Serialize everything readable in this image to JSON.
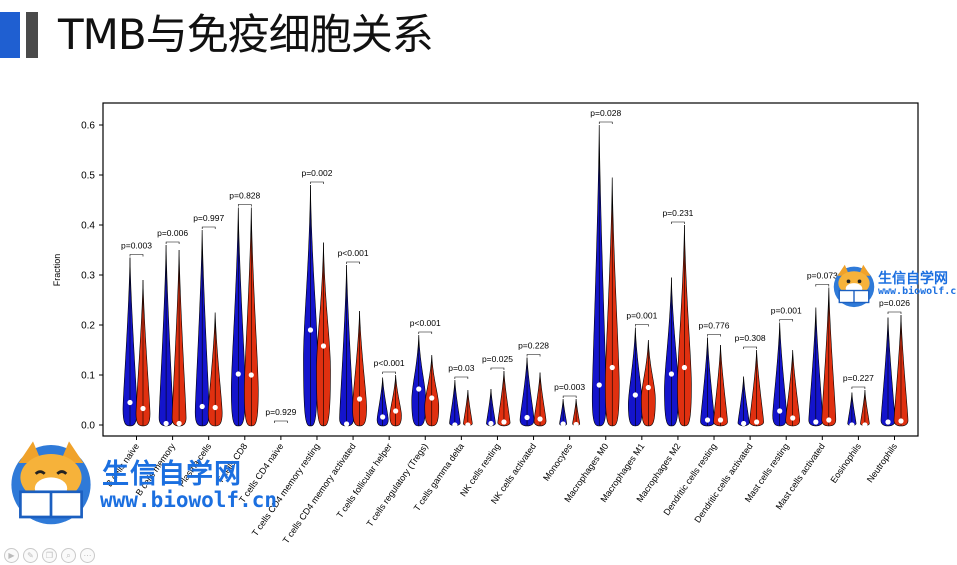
{
  "slide": {
    "title": "TMB与免疫细胞关系"
  },
  "brand": {
    "name_cn": "生信自学网",
    "url": "www.biowolf.cn"
  },
  "toolbar": {
    "icons": [
      "play-icon",
      "pen-icon",
      "copy-icon",
      "zoom-icon",
      "more-icon"
    ]
  },
  "chart_data": {
    "type": "violin",
    "ylabel": "Fraction",
    "ylim": [
      -0.02,
      0.65
    ],
    "yticks": [
      "0.0",
      "0.1",
      "0.2",
      "0.3",
      "0.4",
      "0.5",
      "0.6"
    ],
    "grid": false,
    "colors": {
      "low": "#1414cc",
      "high": "#e03010"
    },
    "categories": [
      {
        "label": "B cells naive",
        "p": "p=0.003",
        "low": {
          "max": 0.335,
          "median": 0.045
        },
        "high": {
          "max": 0.29,
          "median": 0.033
        }
      },
      {
        "label": "B cells memory",
        "p": "p=0.006",
        "low": {
          "max": 0.36,
          "median": 0.003
        },
        "high": {
          "max": 0.35,
          "median": 0.003
        }
      },
      {
        "label": "Plasma cells",
        "p": "p=0.997",
        "low": {
          "max": 0.39,
          "median": 0.037
        },
        "high": {
          "max": 0.225,
          "median": 0.035
        }
      },
      {
        "label": "T cells CD8",
        "p": "p=0.828",
        "low": {
          "max": 0.435,
          "median": 0.102
        },
        "high": {
          "max": 0.435,
          "median": 0.1
        }
      },
      {
        "label": "T cells CD4 naive",
        "p": "p=0.929",
        "low": {
          "max": 0.002,
          "median": 0.0
        },
        "high": {
          "max": 0.002,
          "median": 0.0
        }
      },
      {
        "label": "T cells CD4 memory resting",
        "p": "p=0.002",
        "low": {
          "max": 0.48,
          "median": 0.19
        },
        "high": {
          "max": 0.365,
          "median": 0.158
        }
      },
      {
        "label": "T cells CD4 memory activated",
        "p": "p<0.001",
        "low": {
          "max": 0.32,
          "median": 0.002
        },
        "high": {
          "max": 0.228,
          "median": 0.052
        }
      },
      {
        "label": "T cells follicular helper",
        "p": "p<0.001",
        "low": {
          "max": 0.095,
          "median": 0.016
        },
        "high": {
          "max": 0.1,
          "median": 0.028
        }
      },
      {
        "label": "T cells regulatory (Tregs)",
        "p": "p<0.001",
        "low": {
          "max": 0.18,
          "median": 0.072
        },
        "high": {
          "max": 0.14,
          "median": 0.054
        }
      },
      {
        "label": "T cells gamma delta",
        "p": "p=0.03",
        "low": {
          "max": 0.09,
          "median": 0.0
        },
        "high": {
          "max": 0.07,
          "median": 0.0
        }
      },
      {
        "label": "NK cells resting",
        "p": "p=0.025",
        "low": {
          "max": 0.072,
          "median": 0.003
        },
        "high": {
          "max": 0.108,
          "median": 0.006
        }
      },
      {
        "label": "NK cells activated",
        "p": "p=0.228",
        "low": {
          "max": 0.135,
          "median": 0.015
        },
        "high": {
          "max": 0.105,
          "median": 0.012
        }
      },
      {
        "label": "Monocytes",
        "p": "p=0.003",
        "low": {
          "max": 0.052,
          "median": 0.002
        },
        "high": {
          "max": 0.052,
          "median": 0.001
        }
      },
      {
        "label": "Macrophages M0",
        "p": "p=0.028",
        "low": {
          "max": 0.6,
          "median": 0.08
        },
        "high": {
          "max": 0.495,
          "median": 0.115
        }
      },
      {
        "label": "Macrophages M1",
        "p": "p=0.001",
        "low": {
          "max": 0.195,
          "median": 0.06
        },
        "high": {
          "max": 0.17,
          "median": 0.075
        }
      },
      {
        "label": "Macrophages M2",
        "p": "p=0.231",
        "low": {
          "max": 0.295,
          "median": 0.102
        },
        "high": {
          "max": 0.4,
          "median": 0.115
        }
      },
      {
        "label": "Dendritic cells resting",
        "p": "p=0.776",
        "low": {
          "max": 0.175,
          "median": 0.01
        },
        "high": {
          "max": 0.16,
          "median": 0.01
        }
      },
      {
        "label": "Dendritic cells activated",
        "p": "p=0.308",
        "low": {
          "max": 0.097,
          "median": 0.003
        },
        "high": {
          "max": 0.15,
          "median": 0.006
        }
      },
      {
        "label": "Mast cells resting",
        "p": "p=0.001",
        "low": {
          "max": 0.205,
          "median": 0.028
        },
        "high": {
          "max": 0.15,
          "median": 0.014
        }
      },
      {
        "label": "Mast cells activated",
        "p": "p=0.073",
        "low": {
          "max": 0.235,
          "median": 0.006
        },
        "high": {
          "max": 0.275,
          "median": 0.01
        }
      },
      {
        "label": "Eosinophils",
        "p": "p=0.227",
        "low": {
          "max": 0.065,
          "median": 0.0
        },
        "high": {
          "max": 0.07,
          "median": 0.0
        }
      },
      {
        "label": "Neutrophils",
        "p": "p=0.026",
        "low": {
          "max": 0.215,
          "median": 0.006
        },
        "high": {
          "max": 0.22,
          "median": 0.008
        }
      }
    ]
  }
}
